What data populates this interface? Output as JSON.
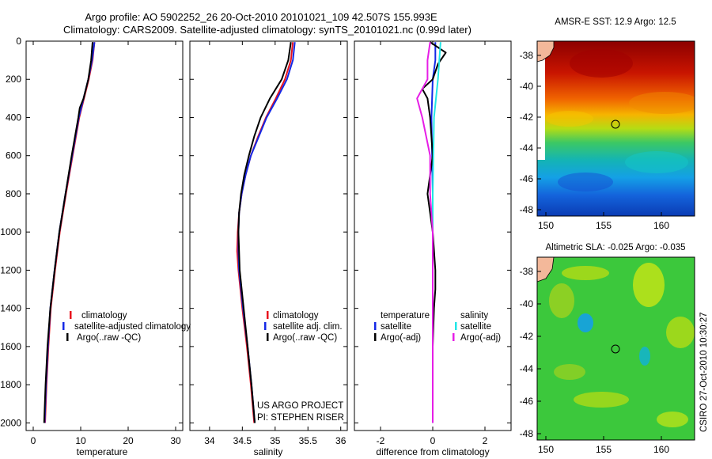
{
  "title_line1": "Argo profile: AO 5902252_26 20-Oct-2010 20101021_109 42.507S 155.993E",
  "title_line2": "Climatology: CARS2009. Satellite-adjusted climatology: synTS_20101021.nc (0.99d later)",
  "colors": {
    "climatology": "#e8141e",
    "satellite": "#1428e6",
    "argo": "#000000",
    "sat_salinity": "#22e6e6",
    "argo_salinity": "#e61ee6"
  },
  "panels": {
    "temperature": {
      "xlabel": "temperature",
      "legend": [
        "climatology",
        "satellite-adjusted climatology",
        "Argo(..raw -QC)"
      ]
    },
    "salinity": {
      "xlabel": "salinity",
      "legend": [
        "climatology",
        "satellite adj. clim.",
        "Argo(..raw -QC)"
      ],
      "credit_line1": "US ARGO PROJECT",
      "credit_line2": "PI: STEPHEN RISER"
    },
    "difference": {
      "xlabel": "difference from climatology",
      "legend_head_left": "temperature",
      "legend_head_right": "salinity",
      "legend_left": [
        "satellite",
        "Argo(-adj)"
      ],
      "legend_right": [
        "satellite",
        "Argo(-adj)"
      ]
    }
  },
  "maps": {
    "sst_title": "AMSR-E SST: 12.9 Argo: 12.5",
    "sla_title": "Altimetric SLA: -0.025 Argo: -0.035",
    "lat_ticks": [
      "-38",
      "-40",
      "-42",
      "-44",
      "-46",
      "-48"
    ],
    "lon_ticks": [
      "150",
      "155",
      "160"
    ]
  },
  "side_stamp": "CSIRO 27-Oct-2010 10:30:27",
  "chart_data": [
    {
      "type": "line",
      "title": "temperature",
      "xlabel": "temperature",
      "ylabel": "",
      "xlim": [
        -1.5,
        31.5
      ],
      "ylim": [
        2040,
        0
      ],
      "xticks": [
        "0",
        "10",
        "20",
        "30"
      ],
      "yticks": [
        "0",
        "200",
        "400",
        "600",
        "800",
        "1000",
        "1200",
        "1400",
        "1600",
        "1800",
        "2000"
      ],
      "series": [
        {
          "name": "climatology",
          "depth": [
            5,
            100,
            200,
            300,
            400,
            600,
            800,
            1000,
            1200,
            1400,
            1600,
            1800,
            2000
          ],
          "values": [
            12.9,
            12.5,
            11.7,
            10.7,
            9.7,
            8.3,
            6.9,
            5.6,
            4.6,
            3.7,
            3.2,
            2.8,
            2.5
          ]
        },
        {
          "name": "satellite-adjusted climatology",
          "depth": [
            5,
            100,
            200,
            300,
            400,
            600,
            800,
            1000,
            1200,
            1400,
            1600,
            1800,
            2000
          ],
          "values": [
            12.9,
            12.4,
            11.6,
            10.6,
            9.6,
            8.2,
            6.8,
            5.5,
            4.5,
            3.6,
            3.1,
            2.7,
            2.4
          ]
        },
        {
          "name": "Argo(..raw -QC)",
          "depth": [
            5,
            100,
            200,
            300,
            350,
            400,
            600,
            800,
            1000,
            1200,
            1400,
            1600,
            1800,
            2000
          ],
          "values": [
            12.5,
            12.2,
            11.6,
            10.6,
            9.8,
            9.5,
            8.1,
            6.8,
            5.5,
            4.5,
            3.6,
            3.0,
            2.6,
            2.3
          ]
        }
      ]
    },
    {
      "type": "line",
      "title": "salinity",
      "xlabel": "salinity",
      "ylabel": "",
      "xlim": [
        33.7,
        36.1
      ],
      "ylim": [
        2040,
        0
      ],
      "xticks": [
        "34",
        "34.5",
        "35",
        "35.5",
        "36"
      ],
      "series": [
        {
          "name": "climatology",
          "depth": [
            5,
            100,
            200,
            300,
            400,
            500,
            600,
            700,
            800,
            900,
            1000,
            1100,
            1200,
            1400,
            1600,
            1800,
            2000
          ],
          "values": [
            35.27,
            35.24,
            35.15,
            35.01,
            34.86,
            34.74,
            34.63,
            34.55,
            34.49,
            34.45,
            34.43,
            34.42,
            34.44,
            34.5,
            34.57,
            34.63,
            34.68
          ]
        },
        {
          "name": "satellite adj. clim.",
          "depth": [
            5,
            100,
            200,
            300,
            400,
            500,
            600,
            700,
            800,
            900,
            1000,
            1100,
            1200,
            1400,
            1600,
            1800,
            2000
          ],
          "values": [
            35.3,
            35.27,
            35.18,
            35.03,
            34.87,
            34.75,
            34.63,
            34.55,
            34.49,
            34.45,
            34.44,
            34.44,
            34.45,
            34.51,
            34.58,
            34.64,
            34.69
          ]
        },
        {
          "name": "Argo(..raw -QC)",
          "depth": [
            5,
            100,
            200,
            300,
            400,
            500,
            600,
            700,
            800,
            900,
            1000,
            1100,
            1200,
            1400,
            1600,
            1800,
            2000
          ],
          "values": [
            35.24,
            35.2,
            35.1,
            34.92,
            34.78,
            34.68,
            34.6,
            34.53,
            34.48,
            34.45,
            34.44,
            34.45,
            34.46,
            34.52,
            34.58,
            34.64,
            34.69
          ]
        }
      ]
    },
    {
      "type": "line",
      "title": "difference from climatology",
      "xlabel": "difference from climatology",
      "ylabel": "",
      "xlim": [
        -3,
        3
      ],
      "ylim": [
        2040,
        0
      ],
      "xticks": [
        "-2",
        "0",
        "2"
      ],
      "series": [
        {
          "name": "temperature satellite",
          "depth": [
            5,
            100,
            200,
            400,
            800,
            1200,
            1600,
            2000
          ],
          "values": [
            0.1,
            0.1,
            0.0,
            -0.05,
            0.0,
            0.0,
            0.0,
            0.0
          ]
        },
        {
          "name": "temperature Argo(-adj)",
          "depth": [
            5,
            60,
            120,
            200,
            250,
            300,
            400,
            600,
            800,
            1000,
            1200,
            1300,
            1400,
            1600,
            1800,
            2000
          ],
          "values": [
            -0.1,
            0.5,
            0.2,
            0.0,
            -0.4,
            -0.2,
            -0.1,
            0.0,
            -0.2,
            0.0,
            0.1,
            0.1,
            0.05,
            0.0,
            0.0,
            0.0
          ]
        },
        {
          "name": "salinity satellite",
          "depth": [
            5,
            200,
            400,
            800,
            1200,
            1600,
            2000
          ],
          "values": [
            0.3,
            0.2,
            0.05,
            0.0,
            0.0,
            0.0,
            0.0
          ]
        },
        {
          "name": "salinity Argo(-adj)",
          "depth": [
            5,
            100,
            200,
            300,
            400,
            600,
            800,
            1000,
            1200,
            1600,
            2000
          ],
          "values": [
            -0.1,
            -0.2,
            -0.2,
            -0.6,
            -0.4,
            -0.1,
            -0.1,
            0.0,
            0.0,
            0.0,
            0.0
          ]
        }
      ]
    }
  ]
}
